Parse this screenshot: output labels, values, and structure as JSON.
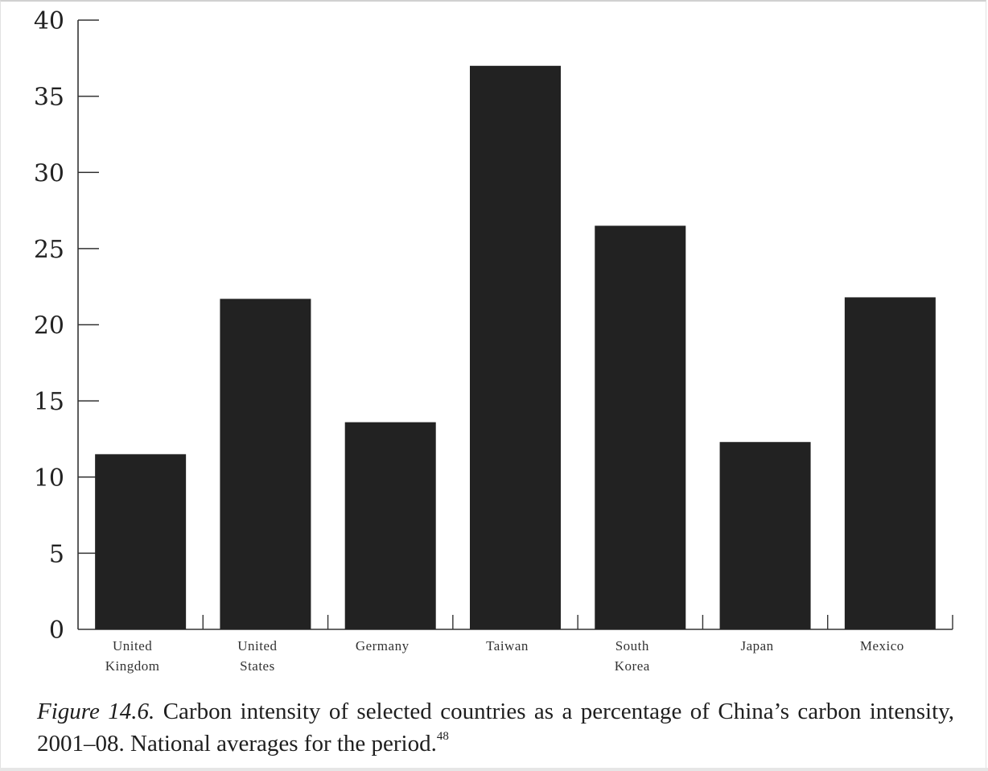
{
  "chart_data": {
    "type": "bar",
    "categories": [
      [
        "United",
        "Kingdom"
      ],
      [
        "United",
        "States"
      ],
      [
        "Germany"
      ],
      [
        "Taiwan"
      ],
      [
        "South",
        "Korea"
      ],
      [
        "Japan"
      ],
      [
        "Mexico"
      ]
    ],
    "values": [
      11.5,
      21.7,
      13.6,
      37.0,
      26.5,
      12.3,
      21.8
    ],
    "ylim": [
      0,
      40
    ],
    "yticks": [
      "0",
      "5",
      "10",
      "15",
      "20",
      "25",
      "30",
      "35",
      "40"
    ],
    "bar_color": "#222222",
    "grid": false,
    "legend": "none"
  },
  "caption": {
    "figure_label": "Figure 14.6.",
    "text": "Carbon intensity of selected countries as a percentage of China’s carbon intensity, 2001–08. National averages for the period.",
    "footnote": "48"
  }
}
